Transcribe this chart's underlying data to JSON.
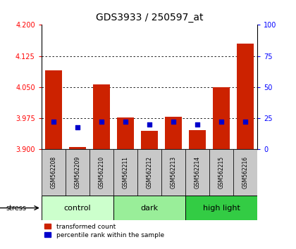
{
  "title": "GDS3933 / 250597_at",
  "samples": [
    "GSM562208",
    "GSM562209",
    "GSM562210",
    "GSM562211",
    "GSM562212",
    "GSM562213",
    "GSM562214",
    "GSM562215",
    "GSM562216"
  ],
  "red_values": [
    4.09,
    3.905,
    4.057,
    3.977,
    3.945,
    3.978,
    3.947,
    4.05,
    4.155
  ],
  "blue_percentiles": [
    22,
    18,
    22,
    22,
    20,
    22,
    20,
    22,
    22
  ],
  "ylim_left": [
    3.9,
    4.2
  ],
  "ylim_right": [
    0,
    100
  ],
  "yticks_left": [
    3.9,
    3.975,
    4.05,
    4.125,
    4.2
  ],
  "yticks_right": [
    0,
    25,
    50,
    75,
    100
  ],
  "groups": [
    {
      "label": "control",
      "samples": [
        0,
        1,
        2
      ],
      "color": "#ccffcc"
    },
    {
      "label": "dark",
      "samples": [
        3,
        4,
        5
      ],
      "color": "#99ee99"
    },
    {
      "label": "high light",
      "samples": [
        6,
        7,
        8
      ],
      "color": "#33cc44"
    }
  ],
  "bar_color": "#cc2200",
  "dot_color": "#0000cc",
  "bar_width": 0.7,
  "dot_size": 25,
  "base_value": 3.9,
  "grid_yticks": [
    3.975,
    4.05,
    4.125
  ],
  "stress_label": "stress",
  "legend_items": [
    "transformed count",
    "percentile rank within the sample"
  ]
}
